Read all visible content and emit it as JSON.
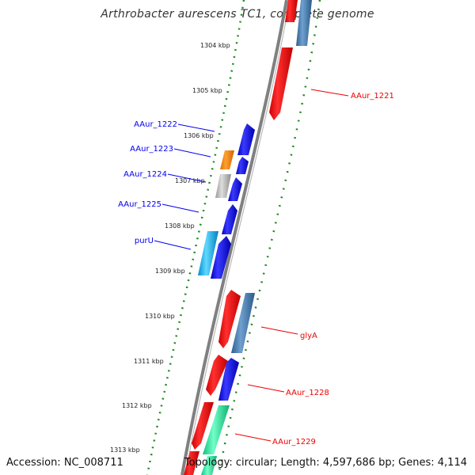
{
  "title": "Arthrobacter aurescens TC1, complete genome",
  "footer": {
    "accession": "Accession: NC_008711",
    "topology": "Topology: circular; Length: 4,597,686 bp; Genes: 4,114"
  },
  "colors": {
    "blue": "#0000ee",
    "red": "#ff0000",
    "steel": "#4682b4",
    "orange": "#ff8c00",
    "gray": "#b0b0b0",
    "cyan": "#1ab0e8",
    "mint": "#1fe8a0",
    "backbone": "#808080",
    "dots": "#228b22"
  },
  "ticks": [
    "1304 kbp",
    "1305 kbp",
    "1306 kbp",
    "1307 kbp",
    "1308 kbp",
    "1309 kbp",
    "1310 kbp",
    "1311 kbp",
    "1312 kbp",
    "1313 kbp"
  ],
  "labels": {
    "left": [
      "AAur_1222",
      "AAur_1223",
      "AAur_1224",
      "AAur_1225",
      "purU"
    ],
    "right": [
      "AAur_1221",
      "glyA",
      "AAur_1228",
      "AAur_1229"
    ]
  }
}
